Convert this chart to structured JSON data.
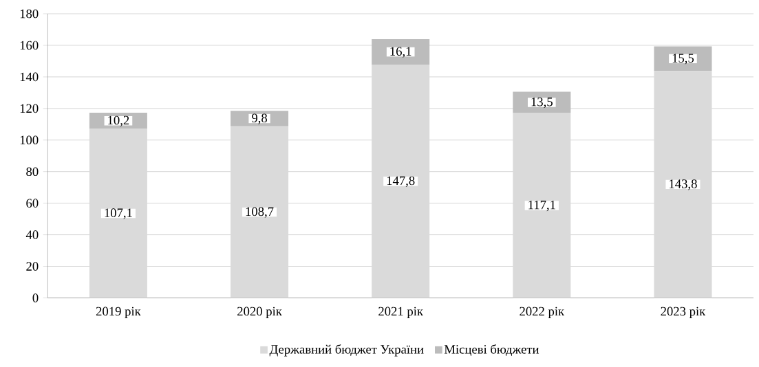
{
  "chart_data": {
    "type": "bar",
    "stacked": true,
    "categories": [
      "2019 рік",
      "2020 рік",
      "2021 рік",
      "2022 рік",
      "2023 рік"
    ],
    "series": [
      {
        "name": "Державний бюджет України",
        "color": "#dadada",
        "values": [
          107.1,
          108.7,
          147.8,
          117.1,
          143.8
        ],
        "value_labels": [
          "107,1",
          "108,7",
          "147,8",
          "117,1",
          "143,8"
        ]
      },
      {
        "name": "Місцеві бюджети",
        "color": "#bcbcbc",
        "values": [
          10.2,
          9.8,
          16.1,
          13.5,
          15.5
        ],
        "value_labels": [
          "10,2",
          "9,8",
          "16,1",
          "13,5",
          "15,5"
        ]
      }
    ],
    "ylim": [
      0,
      180
    ],
    "yticks": [
      0,
      20,
      40,
      60,
      80,
      100,
      120,
      140,
      160,
      180
    ],
    "grid": "y",
    "legend": "bottom"
  }
}
